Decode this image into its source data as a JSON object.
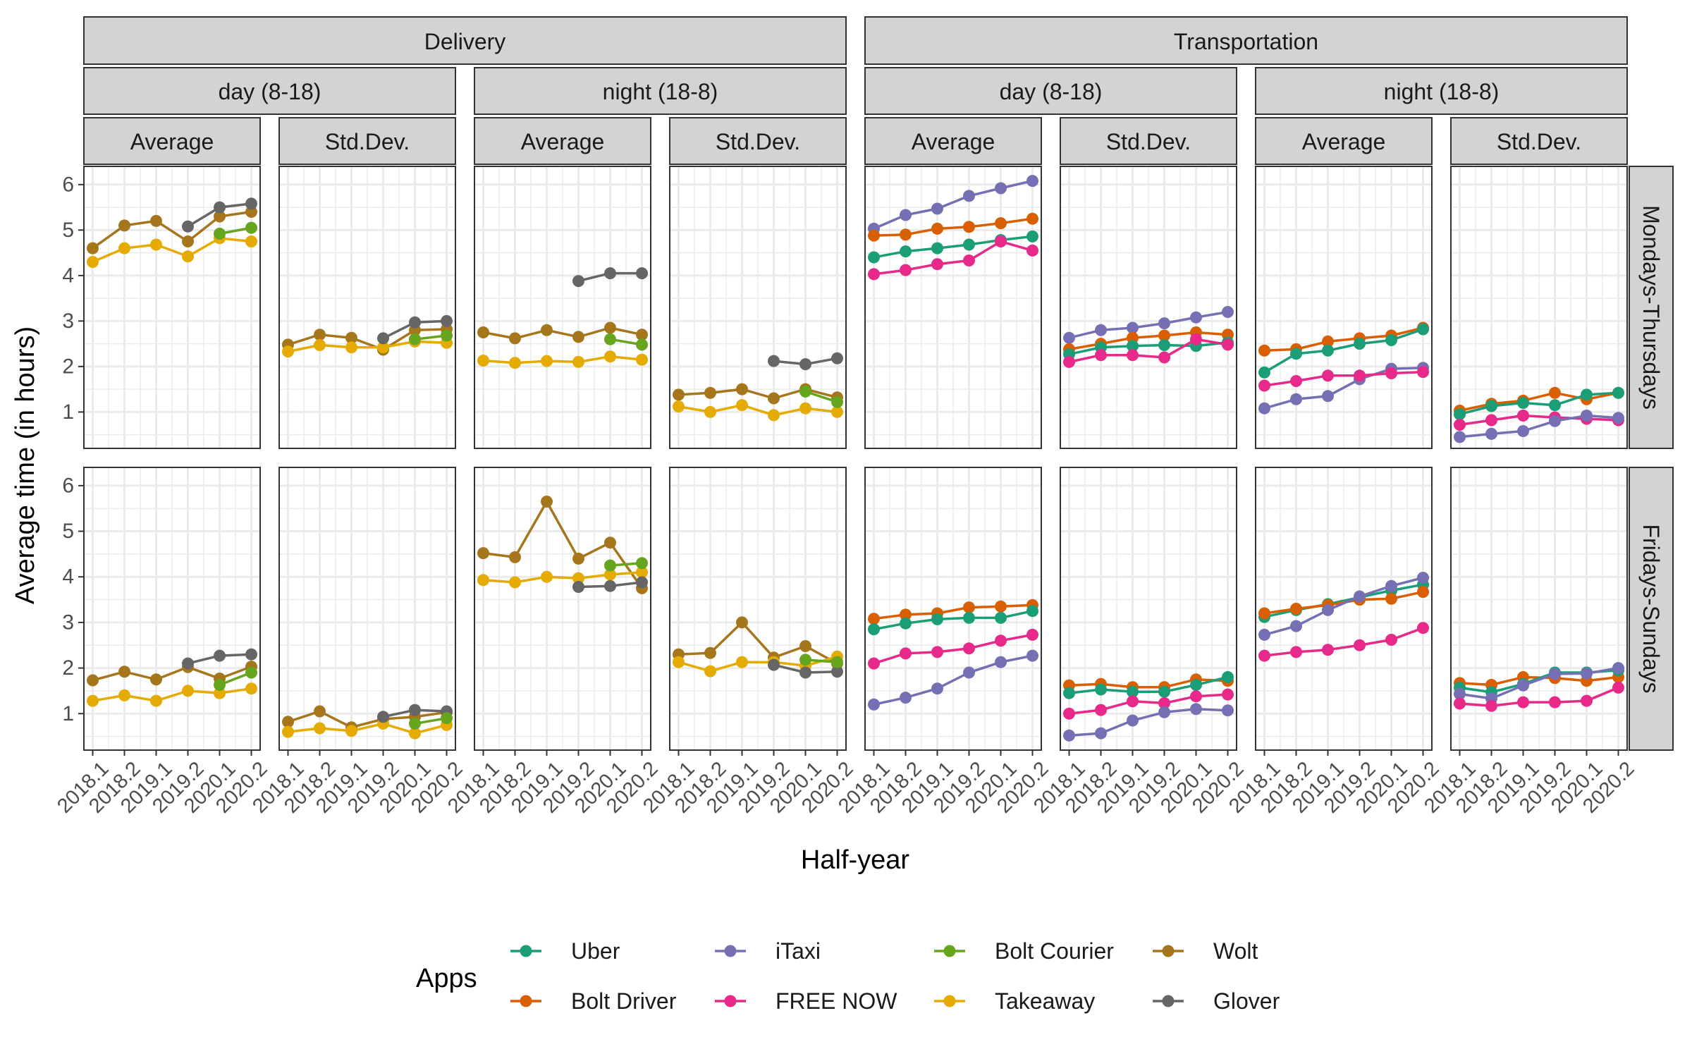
{
  "chart_data": {
    "type": "line",
    "ylabel": "Average time (in hours)",
    "xlabel": "Half-year",
    "categories": [
      "2018.1",
      "2018.2",
      "2019.1",
      "2019.2",
      "2020.1",
      "2020.2"
    ],
    "ylim": [
      0.2,
      6.4
    ],
    "yticks": [
      1,
      2,
      3,
      4,
      5,
      6
    ],
    "grid": true,
    "legend": {
      "title": "Apps",
      "position": "bottom",
      "entries": [
        "Uber",
        "Bolt Driver",
        "iTaxi",
        "FREE NOW",
        "Bolt Courier",
        "Takeaway",
        "Wolt",
        "Glover"
      ]
    },
    "colors": {
      "Uber": "#1b9e77",
      "Bolt Driver": "#d95f02",
      "iTaxi": "#7570b3",
      "FREE NOW": "#e7298a",
      "Bolt Courier": "#66a61e",
      "Takeaway": "#e6ab02",
      "Wolt": "#a6761d",
      "Glover": "#666666"
    },
    "strip_labels": {
      "sectors": [
        "Delivery",
        "Transportation"
      ],
      "times": [
        "day (8-18)",
        "night (18-8)",
        "day (8-18)",
        "night (18-8)"
      ],
      "stats": [
        "Average",
        "Std.Dev.",
        "Average",
        "Std.Dev.",
        "Average",
        "Std.Dev.",
        "Average",
        "Std.Dev."
      ],
      "rows": [
        "Mondays-Thursdays",
        "Fridays-Sundays"
      ]
    },
    "panels": [
      {
        "row": 0,
        "col": 0,
        "series": [
          {
            "name": "Wolt",
            "values": [
              4.6,
              5.1,
              5.2,
              4.75,
              5.3,
              5.4
            ]
          },
          {
            "name": "Takeaway",
            "values": [
              4.3,
              4.6,
              4.68,
              4.42,
              4.82,
              4.75
            ]
          },
          {
            "name": "Glover",
            "values": [
              null,
              null,
              null,
              5.08,
              5.5,
              5.58
            ]
          },
          {
            "name": "Bolt Courier",
            "values": [
              null,
              null,
              null,
              null,
              4.92,
              5.05
            ]
          }
        ]
      },
      {
        "row": 0,
        "col": 1,
        "series": [
          {
            "name": "Wolt",
            "values": [
              2.48,
              2.7,
              2.63,
              2.37,
              2.8,
              2.82
            ]
          },
          {
            "name": "Takeaway",
            "values": [
              2.33,
              2.47,
              2.42,
              2.42,
              2.55,
              2.52
            ]
          },
          {
            "name": "Glover",
            "values": [
              null,
              null,
              null,
              2.62,
              2.97,
              3.0
            ]
          },
          {
            "name": "Bolt Courier",
            "values": [
              null,
              null,
              null,
              null,
              2.6,
              2.68
            ]
          }
        ]
      },
      {
        "row": 0,
        "col": 2,
        "series": [
          {
            "name": "Wolt",
            "values": [
              2.75,
              2.62,
              2.8,
              2.65,
              2.85,
              2.7
            ]
          },
          {
            "name": "Takeaway",
            "values": [
              2.13,
              2.08,
              2.12,
              2.1,
              2.22,
              2.15
            ]
          },
          {
            "name": "Glover",
            "values": [
              null,
              null,
              null,
              3.88,
              4.05,
              4.05
            ]
          },
          {
            "name": "Bolt Courier",
            "values": [
              null,
              null,
              null,
              null,
              2.6,
              2.48
            ]
          }
        ]
      },
      {
        "row": 0,
        "col": 3,
        "series": [
          {
            "name": "Wolt",
            "values": [
              1.38,
              1.42,
              1.5,
              1.3,
              1.5,
              1.32
            ]
          },
          {
            "name": "Takeaway",
            "values": [
              1.12,
              1.0,
              1.15,
              0.93,
              1.08,
              1.0
            ]
          },
          {
            "name": "Glover",
            "values": [
              null,
              null,
              null,
              2.12,
              2.05,
              2.18
            ]
          },
          {
            "name": "Bolt Courier",
            "values": [
              null,
              null,
              null,
              null,
              1.45,
              1.22
            ]
          }
        ]
      },
      {
        "row": 0,
        "col": 4,
        "series": [
          {
            "name": "iTaxi",
            "values": [
              5.03,
              5.33,
              5.47,
              5.75,
              5.92,
              6.08
            ]
          },
          {
            "name": "Bolt Driver",
            "values": [
              4.88,
              4.9,
              5.03,
              5.07,
              5.15,
              5.25
            ]
          },
          {
            "name": "Uber",
            "values": [
              4.4,
              4.53,
              4.6,
              4.68,
              4.78,
              4.86
            ]
          },
          {
            "name": "FREE NOW",
            "values": [
              4.03,
              4.12,
              4.25,
              4.33,
              4.75,
              4.55
            ]
          }
        ]
      },
      {
        "row": 0,
        "col": 5,
        "series": [
          {
            "name": "iTaxi",
            "values": [
              2.63,
              2.8,
              2.85,
              2.95,
              3.08,
              3.2
            ]
          },
          {
            "name": "Bolt Driver",
            "values": [
              2.38,
              2.5,
              2.63,
              2.68,
              2.75,
              2.7
            ]
          },
          {
            "name": "Uber",
            "values": [
              2.27,
              2.42,
              2.45,
              2.47,
              2.45,
              2.53
            ]
          },
          {
            "name": "FREE NOW",
            "values": [
              2.1,
              2.25,
              2.25,
              2.2,
              2.6,
              2.48
            ]
          }
        ]
      },
      {
        "row": 0,
        "col": 6,
        "series": [
          {
            "name": "Bolt Driver",
            "values": [
              2.35,
              2.38,
              2.55,
              2.62,
              2.68,
              2.85
            ]
          },
          {
            "name": "Uber",
            "values": [
              1.87,
              2.28,
              2.35,
              2.5,
              2.58,
              2.82
            ]
          },
          {
            "name": "iTaxi",
            "values": [
              1.08,
              1.28,
              1.35,
              1.72,
              1.95,
              1.97
            ]
          },
          {
            "name": "FREE NOW",
            "values": [
              1.58,
              1.68,
              1.8,
              1.8,
              1.85,
              1.88
            ]
          }
        ]
      },
      {
        "row": 0,
        "col": 7,
        "series": [
          {
            "name": "Bolt Driver",
            "values": [
              1.03,
              1.18,
              1.25,
              1.42,
              1.28,
              1.42
            ]
          },
          {
            "name": "Uber",
            "values": [
              0.95,
              1.13,
              1.2,
              1.15,
              1.38,
              1.42
            ]
          },
          {
            "name": "FREE NOW",
            "values": [
              0.72,
              0.82,
              0.92,
              0.88,
              0.85,
              0.82
            ]
          },
          {
            "name": "iTaxi",
            "values": [
              0.45,
              0.52,
              0.58,
              0.8,
              0.92,
              0.87
            ]
          }
        ]
      },
      {
        "row": 1,
        "col": 0,
        "series": [
          {
            "name": "Wolt",
            "values": [
              1.73,
              1.92,
              1.75,
              2.02,
              1.77,
              2.03
            ]
          },
          {
            "name": "Takeaway",
            "values": [
              1.28,
              1.4,
              1.28,
              1.5,
              1.45,
              1.55
            ]
          },
          {
            "name": "Glover",
            "values": [
              null,
              null,
              null,
              2.1,
              2.27,
              2.3
            ]
          },
          {
            "name": "Bolt Courier",
            "values": [
              null,
              null,
              null,
              null,
              1.63,
              1.9
            ]
          }
        ]
      },
      {
        "row": 1,
        "col": 1,
        "series": [
          {
            "name": "Wolt",
            "values": [
              0.82,
              1.05,
              0.7,
              0.88,
              0.93,
              1.03
            ]
          },
          {
            "name": "Takeaway",
            "values": [
              0.6,
              0.68,
              0.62,
              0.78,
              0.57,
              0.75
            ]
          },
          {
            "name": "Glover",
            "values": [
              null,
              null,
              null,
              0.93,
              1.08,
              1.05
            ]
          },
          {
            "name": "Bolt Courier",
            "values": [
              null,
              null,
              null,
              null,
              0.78,
              0.9
            ]
          }
        ]
      },
      {
        "row": 1,
        "col": 2,
        "series": [
          {
            "name": "Wolt",
            "values": [
              4.52,
              4.43,
              5.65,
              4.4,
              4.75,
              3.75
            ]
          },
          {
            "name": "Takeaway",
            "values": [
              3.93,
              3.88,
              4.0,
              3.97,
              4.05,
              4.1
            ]
          },
          {
            "name": "Glover",
            "values": [
              null,
              null,
              null,
              3.78,
              3.8,
              3.88
            ]
          },
          {
            "name": "Bolt Courier",
            "values": [
              null,
              null,
              null,
              null,
              4.25,
              4.3
            ]
          }
        ]
      },
      {
        "row": 1,
        "col": 3,
        "series": [
          {
            "name": "Wolt",
            "values": [
              2.3,
              2.33,
              3.0,
              2.23,
              2.48,
              2.1
            ]
          },
          {
            "name": "Takeaway",
            "values": [
              2.13,
              1.93,
              2.13,
              2.13,
              2.05,
              2.25
            ]
          },
          {
            "name": "Glover",
            "values": [
              null,
              null,
              null,
              2.07,
              1.9,
              1.92
            ]
          },
          {
            "name": "Bolt Courier",
            "values": [
              null,
              null,
              null,
              null,
              2.18,
              2.13
            ]
          }
        ]
      },
      {
        "row": 1,
        "col": 4,
        "series": [
          {
            "name": "Bolt Driver",
            "values": [
              3.08,
              3.17,
              3.2,
              3.33,
              3.35,
              3.38
            ]
          },
          {
            "name": "Uber",
            "values": [
              2.85,
              2.98,
              3.07,
              3.1,
              3.1,
              3.25
            ]
          },
          {
            "name": "FREE NOW",
            "values": [
              2.1,
              2.32,
              2.35,
              2.43,
              2.6,
              2.73
            ]
          },
          {
            "name": "iTaxi",
            "values": [
              1.2,
              1.35,
              1.55,
              1.9,
              2.13,
              2.27
            ]
          }
        ]
      },
      {
        "row": 1,
        "col": 5,
        "series": [
          {
            "name": "Bolt Driver",
            "values": [
              1.62,
              1.65,
              1.58,
              1.58,
              1.75,
              1.72
            ]
          },
          {
            "name": "Uber",
            "values": [
              1.45,
              1.53,
              1.48,
              1.48,
              1.63,
              1.8
            ]
          },
          {
            "name": "FREE NOW",
            "values": [
              1.0,
              1.08,
              1.27,
              1.23,
              1.38,
              1.42
            ]
          },
          {
            "name": "iTaxi",
            "values": [
              0.52,
              0.57,
              0.85,
              1.03,
              1.1,
              1.07
            ]
          }
        ]
      },
      {
        "row": 1,
        "col": 6,
        "series": [
          {
            "name": "Uber",
            "values": [
              3.12,
              3.27,
              3.4,
              3.55,
              3.7,
              3.83
            ]
          },
          {
            "name": "Bolt Driver",
            "values": [
              3.2,
              3.3,
              3.38,
              3.5,
              3.52,
              3.67
            ]
          },
          {
            "name": "iTaxi",
            "values": [
              2.73,
              2.92,
              3.27,
              3.57,
              3.8,
              3.98
            ]
          },
          {
            "name": "FREE NOW",
            "values": [
              2.27,
              2.35,
              2.4,
              2.5,
              2.62,
              2.88
            ]
          }
        ]
      },
      {
        "row": 1,
        "col": 7,
        "series": [
          {
            "name": "Bolt Driver",
            "values": [
              1.67,
              1.63,
              1.8,
              1.78,
              1.72,
              1.8
            ]
          },
          {
            "name": "Uber",
            "values": [
              1.57,
              1.47,
              1.65,
              1.9,
              1.9,
              1.95
            ]
          },
          {
            "name": "iTaxi",
            "values": [
              1.43,
              1.33,
              1.62,
              1.87,
              1.88,
              2.0
            ]
          },
          {
            "name": "FREE NOW",
            "values": [
              1.22,
              1.17,
              1.25,
              1.25,
              1.28,
              1.57
            ]
          }
        ]
      }
    ]
  }
}
